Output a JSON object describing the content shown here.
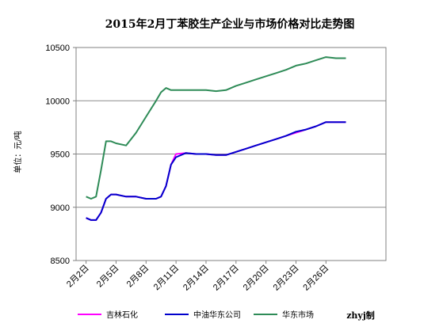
{
  "chart_data": {
    "type": "line",
    "title": "2015年2月丁苯胶生产企业与市场价格对比走势图",
    "ylabel": "单位：元/吨",
    "credit": "zhyj制",
    "ylim": [
      8500,
      10500
    ],
    "yticks": [
      8500,
      9000,
      9500,
      10000,
      10500
    ],
    "xlim": [
      1,
      32
    ],
    "xticks": [
      {
        "x": 2,
        "label": "2月2日"
      },
      {
        "x": 5,
        "label": "2月5日"
      },
      {
        "x": 8,
        "label": "2月8日"
      },
      {
        "x": 11,
        "label": "2月11日"
      },
      {
        "x": 14,
        "label": "2月14日"
      },
      {
        "x": 17,
        "label": "2月17日"
      },
      {
        "x": 20,
        "label": "2月20日"
      },
      {
        "x": 23,
        "label": "2月23日"
      },
      {
        "x": 26,
        "label": "2月26日"
      }
    ],
    "grid": true,
    "legend_position": "bottom",
    "series": [
      {
        "name": "吉林石化",
        "color": "#ff00ff",
        "x": [
          2,
          2.5,
          3,
          3.5,
          4,
          4.5,
          5,
          6,
          7,
          8,
          9,
          9.5,
          10,
          10.5,
          11,
          12,
          13,
          14,
          15,
          16,
          17,
          18,
          19,
          20,
          21,
          22,
          23,
          24,
          25,
          26,
          27,
          28
        ],
        "values": [
          8900,
          8880,
          8880,
          8950,
          9080,
          9120,
          9120,
          9100,
          9100,
          9080,
          9080,
          9100,
          9200,
          9400,
          9500,
          9510,
          9500,
          9500,
          9490,
          9490,
          9520,
          9550,
          9580,
          9610,
          9640,
          9670,
          9700,
          9730,
          9760,
          9800,
          9800,
          9800
        ]
      },
      {
        "name": "中油华东公司",
        "color": "#0000cc",
        "x": [
          2,
          2.5,
          3,
          3.5,
          4,
          4.5,
          5,
          6,
          7,
          8,
          9,
          9.5,
          10,
          10.5,
          11,
          12,
          13,
          14,
          15,
          16,
          17,
          18,
          19,
          20,
          21,
          22,
          23,
          24,
          25,
          26,
          27,
          28
        ],
        "values": [
          8900,
          8880,
          8880,
          8950,
          9080,
          9120,
          9120,
          9100,
          9100,
          9080,
          9080,
          9100,
          9200,
          9400,
          9470,
          9510,
          9500,
          9500,
          9490,
          9490,
          9520,
          9550,
          9580,
          9610,
          9640,
          9670,
          9710,
          9730,
          9760,
          9800,
          9800,
          9800
        ]
      },
      {
        "name": "华东市场",
        "color": "#2e8b57",
        "x": [
          2,
          2.5,
          3,
          3.5,
          4,
          4.5,
          5,
          6,
          7,
          8,
          9,
          9.5,
          10,
          10.5,
          11,
          12,
          13,
          14,
          15,
          16,
          17,
          18,
          19,
          20,
          21,
          22,
          23,
          24,
          25,
          26,
          27,
          28
        ],
        "values": [
          9100,
          9080,
          9100,
          9350,
          9620,
          9620,
          9600,
          9580,
          9700,
          9850,
          10000,
          10080,
          10120,
          10100,
          10100,
          10100,
          10100,
          10100,
          10090,
          10100,
          10140,
          10170,
          10200,
          10230,
          10260,
          10290,
          10330,
          10350,
          10380,
          10410,
          10400,
          10400
        ]
      }
    ]
  }
}
